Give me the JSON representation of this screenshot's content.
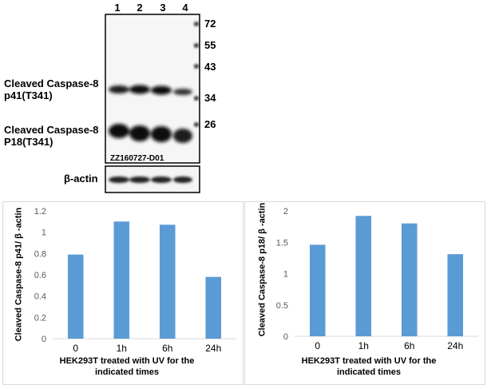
{
  "blot": {
    "lanes": [
      "1",
      "2",
      "3",
      "4"
    ],
    "mw_markers": [
      "72",
      "55",
      "43",
      "34",
      "26"
    ],
    "band1_label_line1": "Cleaved Caspase-8",
    "band1_label_line2": "p41(T341)",
    "band2_label_line1": "Cleaved Caspase-8",
    "band2_label_line2": "P18(T341)",
    "catalog": "ZZ160727-D01",
    "actin_label": "β-actin"
  },
  "chart_data": [
    {
      "type": "bar",
      "categories": [
        "0",
        "1h",
        "6h",
        "24h"
      ],
      "values": [
        0.79,
        1.1,
        1.07,
        0.58
      ],
      "ylabel": "Cleaved Caspase-8 p41/ β -actin",
      "xlabel_line1": "HEK293T treated with UV for the",
      "xlabel_line2": "indicated times",
      "ylim": [
        0,
        1.2
      ],
      "yticks": [
        "0",
        "0.2",
        "0.4",
        "0.6",
        "0.8",
        "1",
        "1.2"
      ],
      "grid": false,
      "color": "#5b9bd5"
    },
    {
      "type": "bar",
      "categories": [
        "0",
        "1h",
        "6h",
        "24h"
      ],
      "values": [
        1.46,
        1.92,
        1.8,
        1.31
      ],
      "ylabel": "Cleaved Caspase-8 p18/ β -actin",
      "xlabel_line1": "HEK293T treated with UV for the",
      "xlabel_line2": "indicated times",
      "ylim": [
        0,
        2
      ],
      "yticks": [
        "0",
        "0.5",
        "1",
        "1.5",
        "2"
      ],
      "grid": false,
      "color": "#5b9bd5"
    }
  ]
}
